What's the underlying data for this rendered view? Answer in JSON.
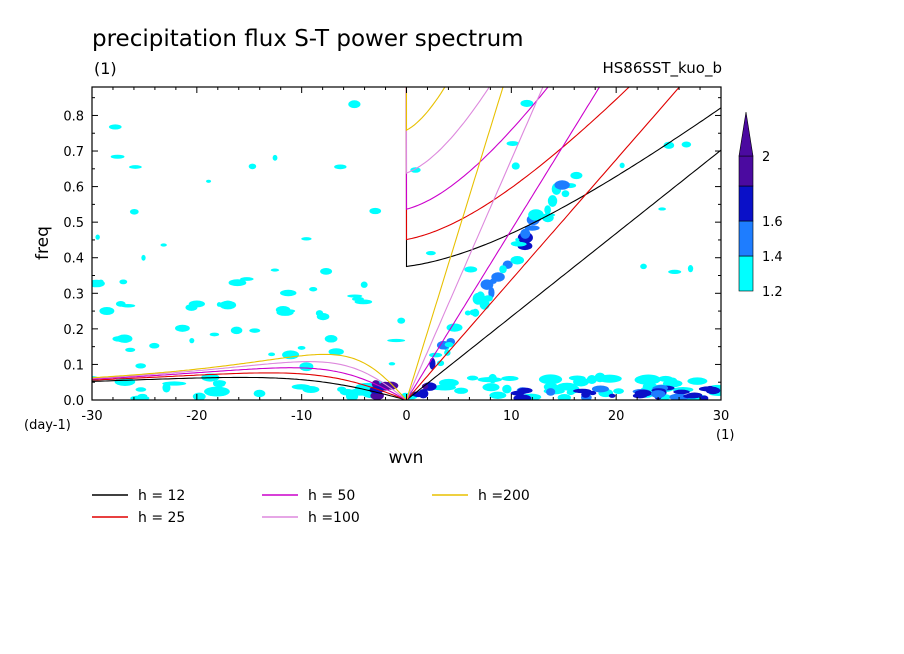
{
  "chart_data": {
    "type": "contour",
    "title": "precipitation flux S-T power spectrum",
    "units_left": "(1)",
    "case_label": "HS86SST_kuo_b",
    "xlabel": "wvn",
    "ylabel": "freq",
    "x_unit": "(1)",
    "y_unit": "(day-1)",
    "xlim": [
      -30,
      30
    ],
    "ylim": [
      0,
      0.88
    ],
    "x_ticks": [
      "-30",
      "-20",
      "-10",
      "0",
      "10",
      "20",
      "30"
    ],
    "y_ticks": [
      "0.0",
      "0.1",
      "0.2",
      "0.3",
      "0.4",
      "0.5",
      "0.6",
      "0.7",
      "0.8"
    ],
    "colorbar": {
      "levels": [
        "1.2",
        "1.4",
        "1.6",
        "2"
      ],
      "colors": [
        "#00ffff",
        "#1e7dff",
        "#0a10c8",
        "#4b0aa0"
      ]
    },
    "dispersion_curves": [
      {
        "name": "h = 12",
        "h": 12,
        "color": "#000000"
      },
      {
        "name": "h = 25",
        "h": 25,
        "color": "#e00000"
      },
      {
        "name": "h = 50",
        "h": 50,
        "color": "#cc00cc"
      },
      {
        "name": "h =100",
        "h": 100,
        "color": "#dd88dd"
      },
      {
        "name": "h =200",
        "h": 200,
        "color": "#e8c000"
      }
    ]
  }
}
